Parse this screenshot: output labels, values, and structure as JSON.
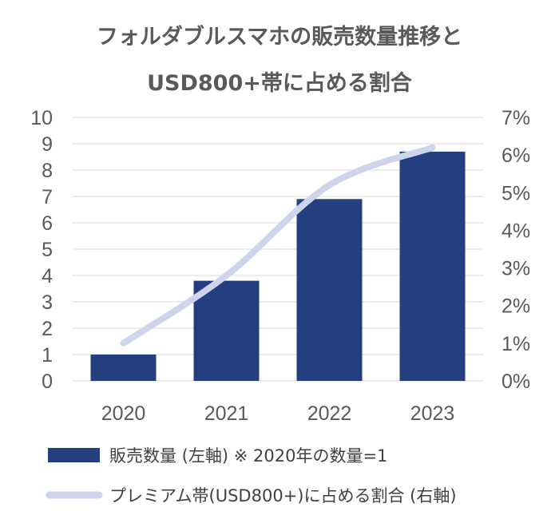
{
  "chart_data": {
    "type": "bar+line",
    "title_lines": [
      "フォルダブルスマホの販売数量推移と",
      "USD800+帯に占める割合"
    ],
    "categories": [
      "2020",
      "2021",
      "2022",
      "2023"
    ],
    "series": [
      {
        "name": "販売数量 (左軸) ※ 2020年の数量=1",
        "type": "bar",
        "axis": "left",
        "values": [
          1.0,
          3.8,
          6.9,
          8.7
        ],
        "color": "#243f7f"
      },
      {
        "name": "プレミアム帯(USD800+)に占める割合 (右軸)",
        "type": "line",
        "axis": "right",
        "values": [
          0.01,
          0.028,
          0.052,
          0.062
        ],
        "color": "#ccd5ec"
      }
    ],
    "y_left": {
      "min": 0,
      "max": 10,
      "ticks": [
        "0",
        "1",
        "2",
        "3",
        "4",
        "5",
        "6",
        "7",
        "8",
        "9",
        "10"
      ]
    },
    "y_right": {
      "min": 0,
      "max": 0.07,
      "ticks": [
        "0%",
        "1%",
        "2%",
        "3%",
        "4%",
        "5%",
        "6%",
        "7%"
      ]
    },
    "grid": true,
    "gridline_color": "#d9d9d9",
    "legend_position": "bottom"
  }
}
